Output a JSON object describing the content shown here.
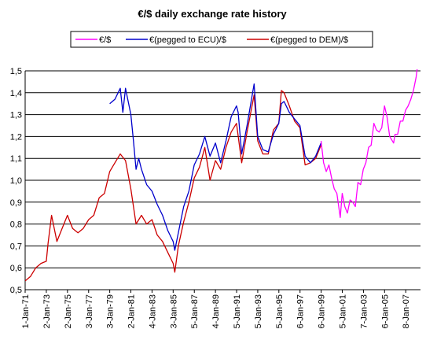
{
  "chart_data": {
    "type": "line",
    "title": "€/$ daily exchange rate history",
    "xlabel": "",
    "ylabel": "",
    "ylim": [
      0.5,
      1.5
    ],
    "yticks": [
      "0,5",
      "0,6",
      "0,7",
      "0,8",
      "0,9",
      "1,0",
      "1,1",
      "1,2",
      "1,3",
      "1,4",
      "1,5"
    ],
    "xlim": [
      "1971-01-01",
      "2008-06-01"
    ],
    "xticks": [
      "1-Jan-71",
      "2-Jan-73",
      "2-Jan-75",
      "3-Jan-77",
      "3-Jan-79",
      "2-Jan-81",
      "4-Jan-83",
      "3-Jan-85",
      "5-Jan-87",
      "4-Jan-89",
      "5-Jan-91",
      "5-Jan-93",
      "5-Jan-95",
      "6-Jan-97",
      "6-Jan-99",
      "5-Jan-01",
      "7-Jan-03",
      "6-Jan-05",
      "8-Jan-07"
    ],
    "grid": true,
    "legend": "top",
    "series": [
      {
        "name": "€/$",
        "color": "#ff00ff",
        "x": [
          "1999-01-04",
          "1999-04-01",
          "1999-07-01",
          "1999-10-01",
          "2000-01-03",
          "2000-04-03",
          "2000-07-03",
          "2000-10-26",
          "2001-01-02",
          "2001-04-02",
          "2001-07-02",
          "2001-10-01",
          "2002-01-02",
          "2002-04-01",
          "2002-07-01",
          "2002-10-01",
          "2003-01-02",
          "2003-04-01",
          "2003-07-01",
          "2003-10-01",
          "2004-01-02",
          "2004-04-01",
          "2004-07-01",
          "2004-10-01",
          "2005-01-03",
          "2005-04-01",
          "2005-07-01",
          "2005-11-15",
          "2006-01-03",
          "2006-04-03",
          "2006-07-03",
          "2006-10-02",
          "2007-01-02",
          "2007-04-02",
          "2007-07-02",
          "2007-10-01",
          "2008-01-02",
          "2008-04-22"
        ],
        "values": [
          1.18,
          1.08,
          1.04,
          1.07,
          1.01,
          0.96,
          0.94,
          0.83,
          0.94,
          0.88,
          0.85,
          0.91,
          0.9,
          0.88,
          0.99,
          0.98,
          1.05,
          1.08,
          1.15,
          1.16,
          1.26,
          1.23,
          1.22,
          1.24,
          1.34,
          1.29,
          1.2,
          1.17,
          1.21,
          1.21,
          1.27,
          1.27,
          1.32,
          1.34,
          1.37,
          1.41,
          1.47,
          1.59
        ]
      },
      {
        "name": "€(pegged to ECU)/$",
        "color": "#0000cc",
        "x": [
          "1979-01-02",
          "1979-07-02",
          "1980-01-02",
          "1980-04-01",
          "1980-07-01",
          "1980-10-01",
          "1981-01-02",
          "1981-04-01",
          "1981-07-01",
          "1981-10-01",
          "1982-01-04",
          "1982-07-01",
          "1983-01-03",
          "1983-07-01",
          "1984-01-03",
          "1984-07-02",
          "1985-01-02",
          "1985-03-01",
          "1985-07-01",
          "1986-01-02",
          "1986-07-01",
          "1987-01-02",
          "1987-07-01",
          "1988-01-04",
          "1988-07-01",
          "1989-01-03",
          "1989-07-03",
          "1990-01-02",
          "1990-07-02",
          "1991-01-02",
          "1991-03-01",
          "1991-07-01",
          "1992-01-02",
          "1992-09-01",
          "1993-01-04",
          "1993-07-01",
          "1994-01-03",
          "1994-07-01",
          "1995-01-03",
          "1995-04-03",
          "1995-07-03",
          "1996-01-02",
          "1996-07-01",
          "1997-01-02",
          "1997-07-01",
          "1998-01-02",
          "1998-07-01",
          "1998-12-31"
        ],
        "values": [
          1.35,
          1.37,
          1.42,
          1.31,
          1.42,
          1.36,
          1.3,
          1.18,
          1.05,
          1.1,
          1.05,
          0.98,
          0.95,
          0.89,
          0.84,
          0.77,
          0.72,
          0.68,
          0.76,
          0.88,
          0.95,
          1.07,
          1.12,
          1.2,
          1.11,
          1.17,
          1.08,
          1.18,
          1.29,
          1.34,
          1.31,
          1.12,
          1.25,
          1.44,
          1.2,
          1.14,
          1.13,
          1.21,
          1.26,
          1.35,
          1.36,
          1.31,
          1.28,
          1.25,
          1.11,
          1.08,
          1.11,
          1.17
        ]
      },
      {
        "name": "€(pegged to DEM)/$",
        "color": "#cc0000",
        "x": [
          "1971-01-01",
          "1971-07-01",
          "1972-01-03",
          "1972-07-03",
          "1973-01-02",
          "1973-03-01",
          "1973-07-02",
          "1974-01-02",
          "1974-07-01",
          "1975-01-02",
          "1975-07-01",
          "1976-01-02",
          "1976-07-01",
          "1977-01-03",
          "1977-07-01",
          "1978-01-02",
          "1978-07-03",
          "1979-01-02",
          "1979-07-02",
          "1980-01-02",
          "1980-07-01",
          "1981-01-02",
          "1981-07-01",
          "1982-01-04",
          "1982-07-01",
          "1983-01-03",
          "1983-07-01",
          "1984-01-03",
          "1984-07-02",
          "1985-01-02",
          "1985-03-01",
          "1985-07-01",
          "1986-01-02",
          "1986-07-01",
          "1987-01-02",
          "1987-07-01",
          "1988-01-04",
          "1988-07-01",
          "1989-01-03",
          "1989-07-03",
          "1990-01-02",
          "1990-07-02",
          "1991-01-02",
          "1991-07-01",
          "1992-01-02",
          "1992-09-01",
          "1993-01-04",
          "1993-07-01",
          "1994-01-03",
          "1994-07-01",
          "1995-01-03",
          "1995-04-03",
          "1995-07-03",
          "1996-01-02",
          "1996-07-01",
          "1997-01-02",
          "1997-07-01",
          "1998-01-02",
          "1998-07-01",
          "1998-12-31"
        ],
        "values": [
          0.54,
          0.56,
          0.6,
          0.62,
          0.63,
          0.71,
          0.84,
          0.72,
          0.78,
          0.84,
          0.78,
          0.76,
          0.78,
          0.82,
          0.84,
          0.92,
          0.94,
          1.04,
          1.08,
          1.12,
          1.09,
          0.96,
          0.8,
          0.84,
          0.8,
          0.82,
          0.75,
          0.72,
          0.67,
          0.62,
          0.58,
          0.7,
          0.81,
          0.9,
          1.01,
          1.06,
          1.15,
          1.0,
          1.09,
          1.05,
          1.15,
          1.22,
          1.26,
          1.08,
          1.22,
          1.39,
          1.18,
          1.12,
          1.12,
          1.23,
          1.26,
          1.41,
          1.4,
          1.34,
          1.27,
          1.24,
          1.07,
          1.08,
          1.1,
          1.16
        ]
      }
    ]
  }
}
